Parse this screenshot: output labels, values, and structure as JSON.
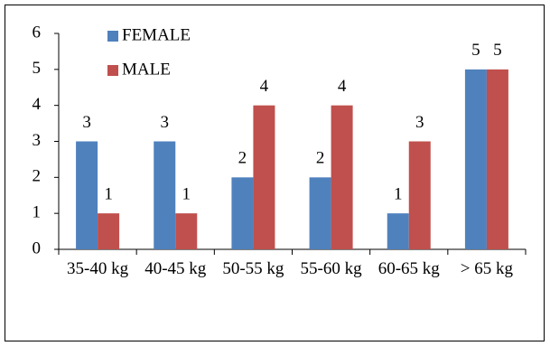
{
  "chart_data": {
    "type": "bar",
    "categories": [
      "35-40 kg",
      "40-45 kg",
      "50-55 kg",
      "55-60 kg",
      "60-65 kg",
      "> 65 kg"
    ],
    "series": [
      {
        "name": "FEMALE",
        "color": "#4f81bd",
        "values": [
          3,
          3,
          2,
          2,
          1,
          5
        ]
      },
      {
        "name": "MALE",
        "color": "#c0504d",
        "values": [
          1,
          1,
          4,
          4,
          3,
          5
        ]
      }
    ],
    "ylim": [
      0,
      6
    ],
    "yticks": [
      0,
      1,
      2,
      3,
      4,
      5,
      6
    ],
    "grid": false,
    "legend": "top-left"
  }
}
